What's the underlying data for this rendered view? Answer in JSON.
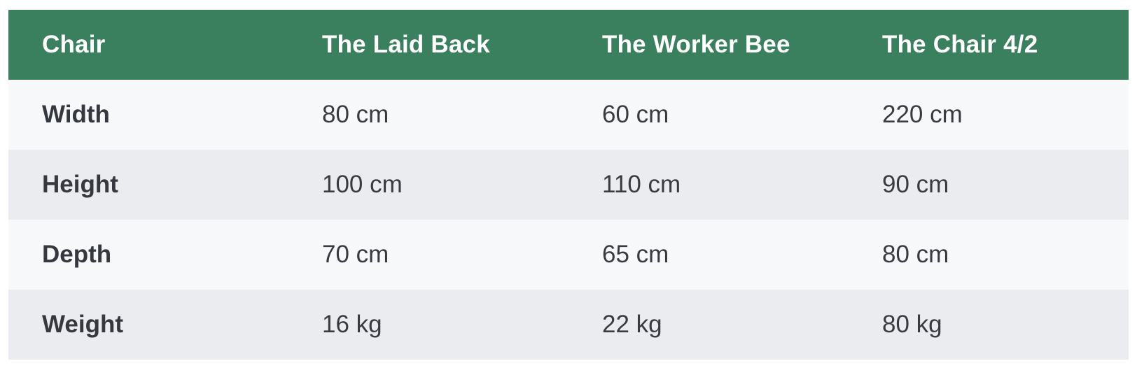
{
  "table": {
    "headers": [
      "Chair",
      "The Laid Back",
      "The Worker Bee",
      "The Chair 4/2"
    ],
    "rows": [
      {
        "label": "Width",
        "cells": [
          "80 cm",
          "60 cm",
          "220 cm"
        ]
      },
      {
        "label": "Height",
        "cells": [
          "100 cm",
          "110 cm",
          "90 cm"
        ]
      },
      {
        "label": "Depth",
        "cells": [
          "70 cm",
          "65 cm",
          "80 cm"
        ]
      },
      {
        "label": "Weight",
        "cells": [
          "16 kg",
          "22 kg",
          "80 kg"
        ]
      }
    ]
  },
  "colors": {
    "header_bg": "#3a7f5e",
    "header_text": "#ffffff",
    "row_odd_bg": "#f7f8fa",
    "row_even_bg": "#ebecef",
    "body_text": "#383c42"
  }
}
